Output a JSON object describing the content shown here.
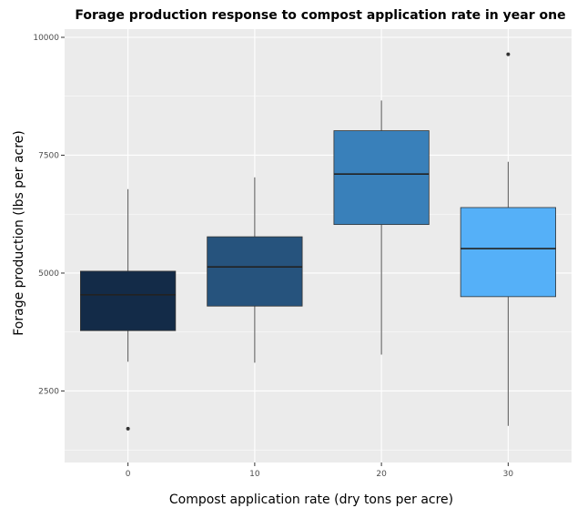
{
  "chart_data": {
    "type": "box",
    "title": "Forage production response to compost application rate in year one",
    "xlabel": "Compost application rate (dry tons per acre)",
    "ylabel": "Forage production (lbs per acre)",
    "ylim": [
      1350,
      10000
    ],
    "yticks": [
      2500,
      5000,
      7500,
      10000
    ],
    "grid": true,
    "legend": "none",
    "categories": [
      "0",
      "10",
      "20",
      "30"
    ],
    "boxes": [
      {
        "category": "0",
        "whisker_low": 3120,
        "q1": 3780,
        "median": 4540,
        "q3": 5040,
        "whisker_high": 6780,
        "outliers": [
          1700
        ],
        "color": "#132b48"
      },
      {
        "category": "10",
        "whisker_low": 3100,
        "q1": 4300,
        "median": 5130,
        "q3": 5770,
        "whisker_high": 7030,
        "outliers": [],
        "color": "#26537d"
      },
      {
        "category": "20",
        "whisker_low": 3270,
        "q1": 6030,
        "median": 7100,
        "q3": 8020,
        "whisker_high": 8660,
        "outliers": [],
        "color": "#3980ba"
      },
      {
        "category": "30",
        "whisker_low": 1760,
        "q1": 4500,
        "median": 5520,
        "q3": 6390,
        "whisker_high": 7360,
        "outliers": [
          9640
        ],
        "color": "#55b0f8"
      }
    ],
    "panel_background": "#ebebeb",
    "grid_color": "#ffffff"
  }
}
